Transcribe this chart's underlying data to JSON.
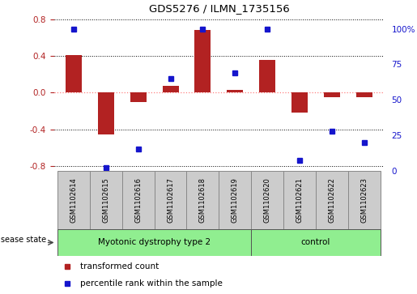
{
  "title": "GDS5276 / ILMN_1735156",
  "samples": [
    "GSM1102614",
    "GSM1102615",
    "GSM1102616",
    "GSM1102617",
    "GSM1102618",
    "GSM1102619",
    "GSM1102620",
    "GSM1102621",
    "GSM1102622",
    "GSM1102623"
  ],
  "red_values": [
    0.41,
    -0.46,
    -0.1,
    0.07,
    0.68,
    0.03,
    0.36,
    -0.22,
    -0.05,
    -0.05
  ],
  "blue_values": [
    100,
    2,
    15,
    65,
    100,
    69,
    100,
    7,
    28,
    20
  ],
  "ylim_left": [
    -0.85,
    0.85
  ],
  "ylim_right": [
    0,
    110
  ],
  "yticks_left": [
    -0.8,
    -0.4,
    0.0,
    0.4,
    0.8
  ],
  "yticks_right": [
    0,
    25,
    50,
    75,
    100
  ],
  "ytick_labels_right": [
    "0",
    "25",
    "50",
    "75",
    "100%"
  ],
  "bar_color": "#B22222",
  "dot_color": "#1515CC",
  "disease_groups": [
    {
      "label": "Myotonic dystrophy type 2",
      "n_samples": 6,
      "color": "#90EE90"
    },
    {
      "label": "control",
      "n_samples": 4,
      "color": "#90EE90"
    }
  ],
  "disease_state_label": "disease state",
  "legend_items": [
    {
      "color": "#B22222",
      "label": "transformed count"
    },
    {
      "color": "#1515CC",
      "label": "percentile rank within the sample"
    }
  ],
  "grid_color": "#000000",
  "zero_line_color": "#FF8080",
  "bar_width": 0.5,
  "cell_color": "#CCCCCC",
  "cell_edge_color": "#888888"
}
